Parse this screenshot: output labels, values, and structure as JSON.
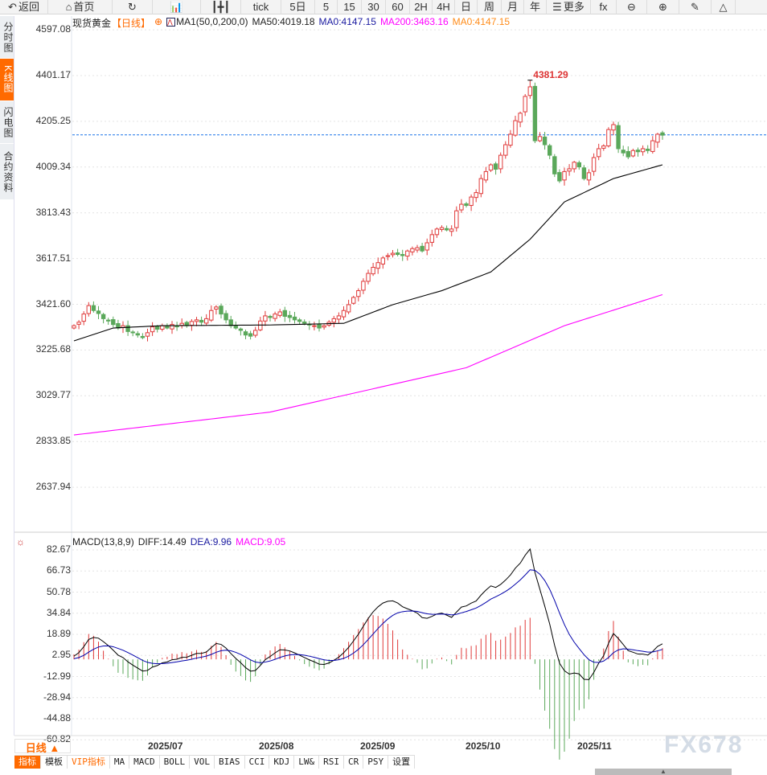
{
  "toolbar": {
    "items": [
      {
        "icon": "back-arrow-icon",
        "label": "返回"
      },
      {
        "icon": "home-icon",
        "label": "首页"
      },
      {
        "icon": "refresh-icon",
        "label": ""
      },
      {
        "icon": "bar-chart-icon",
        "label": ""
      },
      {
        "icon": "candles-icon",
        "label": ""
      },
      {
        "icon": "",
        "label": "tick"
      },
      {
        "icon": "",
        "label": "5日"
      },
      {
        "icon": "",
        "label": "5"
      },
      {
        "icon": "",
        "label": "15"
      },
      {
        "icon": "",
        "label": "30"
      },
      {
        "icon": "",
        "label": "60"
      },
      {
        "icon": "",
        "label": "2H"
      },
      {
        "icon": "",
        "label": "4H"
      },
      {
        "icon": "",
        "label": "日"
      },
      {
        "icon": "",
        "label": "周"
      },
      {
        "icon": "",
        "label": "月"
      },
      {
        "icon": "",
        "label": "年"
      },
      {
        "icon": "menu-icon",
        "label": "更多"
      },
      {
        "icon": "fx-icon",
        "label": "fx"
      },
      {
        "icon": "zoom-out-icon",
        "label": "⊖"
      },
      {
        "icon": "zoom-in-icon",
        "label": "⊕"
      },
      {
        "icon": "pen-icon",
        "label": "✎"
      },
      {
        "icon": "triangle-icon",
        "label": "△"
      }
    ]
  },
  "sidebar": {
    "tabs": [
      {
        "label": "分时图"
      },
      {
        "label": "K线图",
        "active": true
      },
      {
        "label": "闪电图"
      },
      {
        "label": "合约资料"
      }
    ]
  },
  "main_legend": {
    "name": "现货黄金",
    "period": "【日线】",
    "ma_label": "MA1(50,0,200,0)",
    "ma50": "MA50:4019.18",
    "ma0": "MA0:4147.15",
    "ma200": "MA200:3463.16",
    "ma0b": "MA0:4147.15"
  },
  "macd_legend": {
    "label": "MACD(13,8,9)",
    "diff": "DIFF:14.49",
    "dea": "DEA:9.96",
    "macd": "MACD:9.05"
  },
  "colors": {
    "up": "#e03a3a",
    "down": "#5aa85a",
    "ma50": "#000000",
    "ma200": "#ff00ff",
    "dea": "#0000aa",
    "last_price": "#1a73e8",
    "accent": "#ff6a00"
  },
  "period_selector": "日线 ▲",
  "indicators": [
    {
      "label": "指标",
      "active": true
    },
    {
      "label": "模板"
    },
    {
      "label": "VIP指标",
      "vip": true
    },
    {
      "label": "MA"
    },
    {
      "label": "MACD"
    },
    {
      "label": "BOLL"
    },
    {
      "label": "VOL"
    },
    {
      "label": "BIAS"
    },
    {
      "label": "CCI"
    },
    {
      "label": "KDJ"
    },
    {
      "label": "LW&"
    },
    {
      "label": "RSI"
    },
    {
      "label": "CR"
    },
    {
      "label": "PSY"
    },
    {
      "label": "设置"
    }
  ],
  "watermark": "FX678",
  "chart_data": [
    {
      "type": "candlestick",
      "y_ticks": [
        "4597.08",
        "4401.17",
        "4205.25",
        "4009.34",
        "3813.43",
        "3617.51",
        "3421.60",
        "3225.68",
        "3029.77",
        "2833.85",
        "2637.94"
      ],
      "ylim": [
        2637.94,
        4597.08
      ],
      "x_ticks": [
        "2025/07",
        "2025/08",
        "2025/09",
        "2025/10",
        "2025/11"
      ],
      "high_label": "4381.29",
      "high_value": 4381.29,
      "last_price": 4147.15,
      "close": [
        3330,
        3345,
        3380,
        3416,
        3395,
        3382,
        3360,
        3350,
        3335,
        3320,
        3330,
        3305,
        3300,
        3290,
        3279,
        3300,
        3325,
        3315,
        3330,
        3320,
        3335,
        3325,
        3340,
        3330,
        3348,
        3355,
        3345,
        3360,
        3395,
        3410,
        3380,
        3355,
        3330,
        3320,
        3310,
        3290,
        3285,
        3310,
        3350,
        3372,
        3365,
        3380,
        3389,
        3370,
        3365,
        3355,
        3348,
        3340,
        3335,
        3330,
        3320,
        3330,
        3345,
        3360,
        3372,
        3395,
        3420,
        3451,
        3480,
        3520,
        3554,
        3580,
        3600,
        3620,
        3630,
        3640,
        3635,
        3630,
        3650,
        3660,
        3664,
        3650,
        3685,
        3720,
        3744,
        3750,
        3740,
        3744,
        3822,
        3850,
        3845,
        3881,
        3900,
        3960,
        3990,
        4019,
        4000,
        4060,
        4105,
        4150,
        4208,
        4240,
        4312,
        4353,
        4122,
        4140,
        4105,
        4060,
        3980,
        3950,
        3990,
        4002,
        4030,
        4010,
        3960,
        3985,
        4050,
        4088,
        4100,
        4170,
        4191,
        4088,
        4070,
        4053,
        4080,
        4075,
        4088,
        4080,
        4122,
        4150,
        4146
      ],
      "ma50": [
        [
          0,
          3265
        ],
        [
          8,
          3320
        ],
        [
          18,
          3330
        ],
        [
          40,
          3333
        ],
        [
          55,
          3340
        ],
        [
          65,
          3420
        ],
        [
          75,
          3480
        ],
        [
          85,
          3560
        ],
        [
          93,
          3700
        ],
        [
          100,
          3860
        ],
        [
          110,
          3960
        ],
        [
          120,
          4019
        ]
      ],
      "ma200": [
        [
          0,
          2862
        ],
        [
          40,
          2960
        ],
        [
          80,
          3150
        ],
        [
          100,
          3330
        ],
        [
          120,
          3463
        ]
      ]
    },
    {
      "type": "macd",
      "y_ticks": [
        "82.67",
        "66.73",
        "50.78",
        "34.84",
        "18.89",
        "2.95",
        "-12.99",
        "-28.94",
        "-44.88",
        "-60.82"
      ],
      "ylim": [
        -60.82,
        82.67
      ]
    }
  ]
}
